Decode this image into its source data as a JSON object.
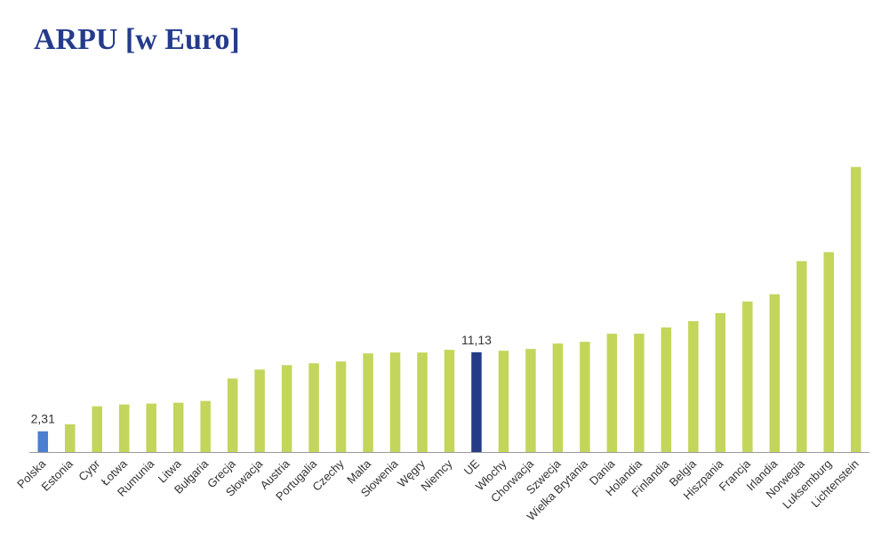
{
  "title": "ARPU [w Euro]",
  "colors": {
    "default_bar": "#c4d55b",
    "highlight_bar": "#4a7fd1",
    "average_bar": "#263b86",
    "axis": "#999999",
    "title": "#243b8c"
  },
  "chart_data": {
    "type": "bar",
    "title": "ARPU [w Euro]",
    "xlabel": "",
    "ylabel": "",
    "grid": false,
    "legend": "none",
    "ylim": [
      0,
      41
    ],
    "categories": [
      "Polska",
      "Estonia",
      "Cypr",
      "Łotwa",
      "Rumunia",
      "Litwa",
      "Bułgaria",
      "Grecja",
      "Słowacja",
      "Austria",
      "Portugalia",
      "Czechy",
      "Malta",
      "Słowenia",
      "Węgry",
      "Niemcy",
      "UE",
      "Włochy",
      "Chorwacja",
      "Szwecja",
      "Wielka Brytania",
      "Dania",
      "Holandia",
      "Finlandia",
      "Belgia",
      "Hiszpania",
      "Francja",
      "Irlandia",
      "Norwegia",
      "Luksemburg",
      "Lichtenstein"
    ],
    "values": [
      2.31,
      3.1,
      5.1,
      5.3,
      5.4,
      5.5,
      5.7,
      8.2,
      9.2,
      9.7,
      9.9,
      10.1,
      11.0,
      11.1,
      11.1,
      11.4,
      11.13,
      11.3,
      11.5,
      12.1,
      12.3,
      13.2,
      13.2,
      13.9,
      14.6,
      15.5,
      16.8,
      17.6,
      21.3,
      22.3,
      31.8
    ],
    "highlight": {
      "Polska": "highlight_bar",
      "UE": "average_bar"
    },
    "data_labels": [
      {
        "category": "Polska",
        "text": "2,31"
      },
      {
        "category": "UE",
        "text": "11,13"
      }
    ]
  }
}
